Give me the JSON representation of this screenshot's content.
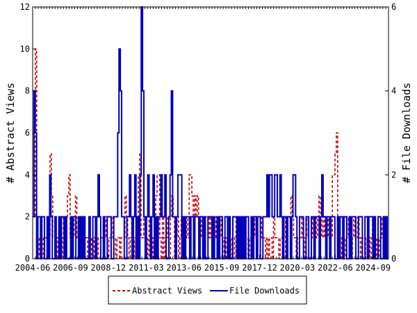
{
  "chart_data": {
    "type": "line",
    "x_start": "2004-06",
    "x_end": "2025-08",
    "x_tick_labels": [
      "2004-06",
      "2006-09",
      "2008-12",
      "2011-03",
      "2013-06",
      "2015-09",
      "2017-12",
      "2020-03",
      "2022-06",
      "2024-09"
    ],
    "ylabel_left": "# Abstract Views",
    "ylabel_right": "# File Downloads",
    "ylim_left": [
      0,
      12
    ],
    "ylim_right": [
      0,
      6
    ],
    "yticks_left": [
      "0",
      "2",
      "4",
      "6",
      "8",
      "10",
      "12"
    ],
    "yticks_right": [
      "0",
      "2",
      "4",
      "6"
    ],
    "grid": false,
    "legend_position": "bottom-center",
    "series": [
      {
        "name": "Abstract Views",
        "axis": "left",
        "color": "#cc0000",
        "style": "dashed",
        "values": [
          3,
          2,
          10,
          2,
          1,
          0,
          2,
          1,
          0,
          1,
          1,
          0,
          1,
          5,
          3,
          1,
          1,
          0,
          1,
          0,
          2,
          1,
          0,
          2,
          1,
          2,
          3,
          4,
          1,
          2,
          1,
          2,
          3,
          1,
          2,
          1,
          1,
          2,
          0,
          1,
          1,
          0,
          1,
          1,
          0,
          0,
          1,
          1,
          0,
          1,
          1,
          1,
          1,
          1,
          2,
          1,
          0,
          1,
          1,
          2,
          1,
          1,
          0,
          1,
          1,
          0,
          1,
          1,
          1,
          3,
          2,
          1,
          0,
          1,
          2,
          1,
          0,
          1,
          2,
          4,
          5,
          1,
          1,
          2,
          2,
          1,
          0,
          2,
          1,
          1,
          0,
          1,
          3,
          4,
          4,
          1,
          0,
          2,
          0,
          1,
          2,
          1,
          0,
          2,
          3,
          2,
          0,
          1,
          2,
          0,
          1,
          2,
          1,
          0,
          1,
          2,
          1,
          4,
          4,
          3,
          2,
          3,
          2,
          3,
          1,
          1,
          2,
          1,
          0,
          2,
          2,
          1,
          2,
          1,
          0,
          1,
          2,
          1,
          0,
          1,
          2,
          1,
          0,
          1,
          0,
          1,
          2,
          1,
          0,
          1,
          1,
          0,
          2,
          0,
          1,
          0,
          1,
          1,
          0,
          1,
          1,
          0,
          1,
          1,
          0,
          1,
          2,
          1,
          0,
          0,
          1,
          2,
          1,
          1,
          0,
          1,
          0,
          1,
          1,
          0,
          2,
          1,
          1,
          1,
          0,
          1,
          1,
          1,
          2,
          0,
          1,
          1,
          1,
          3,
          2,
          1,
          1,
          0,
          1,
          1,
          1,
          2,
          1,
          0,
          1,
          2,
          1,
          1,
          1,
          2,
          1,
          2,
          1,
          2,
          3,
          1,
          2,
          1,
          2,
          1,
          2,
          1,
          1,
          1,
          4,
          4,
          5,
          6,
          1,
          1,
          0,
          1,
          1,
          0,
          1,
          2,
          1,
          1,
          0,
          1,
          2,
          1,
          1,
          2,
          1,
          0,
          1,
          1,
          1,
          0,
          1,
          1,
          0,
          1,
          2,
          1,
          0,
          1,
          0,
          1,
          1,
          2,
          2,
          1,
          0,
          1
        ],
        "peak_value": 10
      },
      {
        "name": "File Downloads",
        "axis": "right",
        "color": "#0000bb",
        "style": "solid",
        "values": [
          1,
          4,
          3,
          0,
          1,
          1,
          0,
          1,
          1,
          0,
          0,
          1,
          0,
          2,
          1,
          0,
          0,
          1,
          0,
          0,
          1,
          0,
          1,
          1,
          0,
          1,
          0,
          0,
          0,
          1,
          0,
          1,
          1,
          0,
          0,
          1,
          0,
          1,
          0,
          1,
          0,
          0,
          0,
          1,
          0,
          0,
          1,
          1,
          0,
          1,
          2,
          1,
          0,
          0,
          1,
          0,
          0,
          1,
          1,
          1,
          0,
          0,
          1,
          1,
          1,
          3,
          5,
          4,
          1,
          1,
          0,
          0,
          1,
          1,
          2,
          1,
          0,
          1,
          2,
          0,
          1,
          0,
          2,
          6,
          4,
          1,
          0,
          1,
          2,
          1,
          0,
          1,
          2,
          0,
          1,
          0,
          1,
          1,
          2,
          1,
          1,
          2,
          0,
          0,
          1,
          2,
          4,
          1,
          1,
          0,
          1,
          2,
          2,
          2,
          0,
          1,
          0,
          1,
          1,
          1,
          0,
          1,
          1,
          0,
          1,
          1,
          1,
          0,
          1,
          1,
          0,
          1,
          0,
          0,
          1,
          1,
          1,
          0,
          1,
          0,
          0,
          1,
          0,
          1,
          1,
          0,
          0,
          1,
          1,
          0,
          1,
          0,
          0,
          1,
          1,
          1,
          0,
          1,
          0,
          1,
          0,
          1,
          0,
          1,
          1,
          0,
          0,
          1,
          0,
          1,
          1,
          0,
          1,
          1,
          0,
          0,
          1,
          1,
          1,
          2,
          1,
          2,
          2,
          1,
          1,
          2,
          2,
          1,
          1,
          2,
          1,
          0,
          1,
          1,
          0,
          1,
          1,
          0,
          1,
          2,
          2,
          1,
          0,
          0,
          1,
          1,
          1,
          0,
          0,
          1,
          1,
          0,
          0,
          1,
          1,
          0,
          1,
          1,
          1,
          0,
          1,
          2,
          1,
          1,
          0,
          1,
          1,
          0,
          1,
          1,
          1,
          0,
          0,
          1,
          0,
          1,
          1,
          0,
          1,
          1,
          0,
          0,
          1,
          0,
          1,
          1,
          1,
          0,
          0,
          1,
          1,
          1,
          0,
          0,
          1,
          1,
          0,
          1,
          1,
          1,
          0,
          1,
          0,
          0,
          1,
          1,
          0,
          0,
          1,
          0,
          1,
          0
        ],
        "peak_value": 6
      }
    ]
  },
  "legend": {
    "abstract_views_label": "Abstract Views",
    "file_downloads_label": "File Downloads"
  }
}
